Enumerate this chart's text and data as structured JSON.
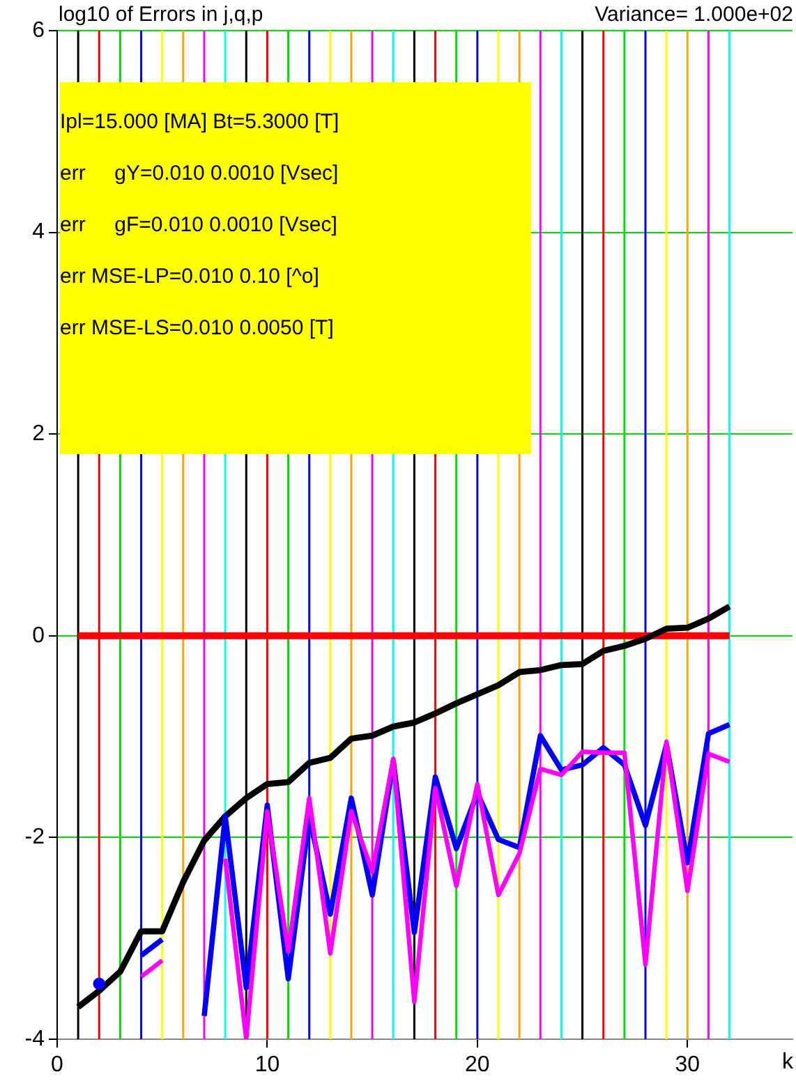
{
  "chart_data": {
    "type": "line",
    "title": "log10 of Errors in j,q,p",
    "subtitle": "Variance= 1.000e+02",
    "xlabel": "k",
    "annotations": [
      "Ipl=15.000 [MA] Bt=5.3000 [T]",
      "err     gY=0.010 0.0010 [Vsec]",
      "err     gF=0.010 0.0010 [Vsec]",
      "err MSE-LP=0.010 0.10 [^o]",
      "err MSE-LS=0.010 0.0050 [T]"
    ],
    "x": [
      1,
      2,
      3,
      4,
      5,
      6,
      7,
      8,
      9,
      10,
      11,
      12,
      13,
      14,
      15,
      16,
      17,
      18,
      19,
      20,
      21,
      22,
      23,
      24,
      25,
      26,
      27,
      28,
      29,
      30,
      31,
      32
    ],
    "series": [
      {
        "color": "#ff0000",
        "values": [
          0,
          0,
          0,
          0,
          0,
          0,
          0,
          0,
          0,
          0,
          0,
          0,
          0,
          0,
          0,
          0,
          0,
          0,
          0,
          0,
          0,
          0,
          0,
          0,
          0,
          0,
          0,
          0,
          0,
          0,
          0,
          0
        ]
      },
      {
        "color": "#000000",
        "values": [
          -3.68,
          -3.52,
          -3.33,
          -2.93,
          -2.93,
          -2.44,
          -2.03,
          -1.79,
          -1.61,
          -1.47,
          -1.45,
          -1.26,
          -1.21,
          -1.02,
          -0.99,
          -0.9,
          -0.86,
          -0.77,
          -0.67,
          -0.58,
          -0.49,
          -0.36,
          -0.34,
          -0.29,
          -0.28,
          -0.15,
          -0.1,
          -0.03,
          0.07,
          0.08,
          0.17,
          0.29
        ]
      },
      {
        "color": "#0000ff",
        "values": [
          null,
          -3.45,
          null,
          -3.17,
          -3.01,
          null,
          -3.77,
          -1.79,
          -3.49,
          -1.68,
          -3.4,
          -1.79,
          -2.76,
          -1.61,
          -2.57,
          -1.24,
          -2.94,
          -1.4,
          -2.11,
          -1.56,
          -2.02,
          -2.1,
          -0.99,
          -1.33,
          -1.28,
          -1.11,
          -1.28,
          -1.88,
          -1.08,
          -2.25,
          -0.97,
          -0.88
        ]
      },
      {
        "color": "#ff00ff",
        "values": [
          null,
          null,
          null,
          -3.38,
          -3.22,
          null,
          null,
          -2.21,
          -4.0,
          -1.74,
          -3.13,
          -1.61,
          -3.15,
          -1.74,
          -2.34,
          -1.22,
          -3.63,
          -1.51,
          -2.48,
          -1.47,
          -2.57,
          -2.16,
          -1.32,
          -1.38,
          -1.15,
          -1.16,
          -1.16,
          -3.26,
          -1.05,
          -2.53,
          -1.17,
          -1.25
        ]
      }
    ],
    "xlim": [
      0,
      35
    ],
    "xticks": [
      0,
      10,
      20,
      30
    ],
    "ylim": [
      -4,
      6
    ],
    "yticks": [
      -4,
      -2,
      0,
      2,
      4,
      6
    ],
    "grid": "y",
    "legend": false,
    "marker": "none",
    "line_style": "solid",
    "ref_lines": [
      {
        "axis": "x",
        "value": 1,
        "color": "#000000"
      },
      {
        "axis": "x",
        "value": 2,
        "color": "#ff0000"
      },
      {
        "axis": "x",
        "value": 3,
        "color": "#00e000"
      },
      {
        "axis": "x",
        "value": 4,
        "color": "#0000ff"
      },
      {
        "axis": "x",
        "value": 5,
        "color": "#ffff00"
      },
      {
        "axis": "x",
        "value": 6,
        "color": "#ffa500"
      },
      {
        "axis": "x",
        "value": 7,
        "color": "#ff00ff"
      },
      {
        "axis": "x",
        "value": 8,
        "color": "#00ffff"
      },
      {
        "axis": "x",
        "value": 9,
        "color": "#000000"
      },
      {
        "axis": "x",
        "value": 10,
        "color": "#ff0000"
      },
      {
        "axis": "x",
        "value": 11,
        "color": "#00e000"
      },
      {
        "axis": "x",
        "value": 12,
        "color": "#0000ff"
      },
      {
        "axis": "x",
        "value": 13,
        "color": "#ffff00"
      },
      {
        "axis": "x",
        "value": 14,
        "color": "#ffa500"
      },
      {
        "axis": "x",
        "value": 15,
        "color": "#ff00ff"
      },
      {
        "axis": "x",
        "value": 16,
        "color": "#00ffff"
      },
      {
        "axis": "x",
        "value": 17,
        "color": "#000000"
      },
      {
        "axis": "x",
        "value": 18,
        "color": "#ff0000"
      },
      {
        "axis": "x",
        "value": 19,
        "color": "#00e000"
      },
      {
        "axis": "x",
        "value": 20,
        "color": "#0000ff"
      },
      {
        "axis": "x",
        "value": 21,
        "color": "#ffff00"
      },
      {
        "axis": "x",
        "value": 22,
        "color": "#ffa500"
      },
      {
        "axis": "x",
        "value": 23,
        "color": "#ff00ff"
      },
      {
        "axis": "x",
        "value": 24,
        "color": "#00ffff"
      },
      {
        "axis": "x",
        "value": 25,
        "color": "#000000"
      },
      {
        "axis": "x",
        "value": 26,
        "color": "#ff0000"
      },
      {
        "axis": "x",
        "value": 27,
        "color": "#00e000"
      },
      {
        "axis": "x",
        "value": 28,
        "color": "#0000ff"
      },
      {
        "axis": "x",
        "value": 29,
        "color": "#ffff00"
      },
      {
        "axis": "x",
        "value": 30,
        "color": "#ffa500"
      },
      {
        "axis": "x",
        "value": 31,
        "color": "#ff00ff"
      },
      {
        "axis": "x",
        "value": 32,
        "color": "#00ffff"
      }
    ]
  }
}
